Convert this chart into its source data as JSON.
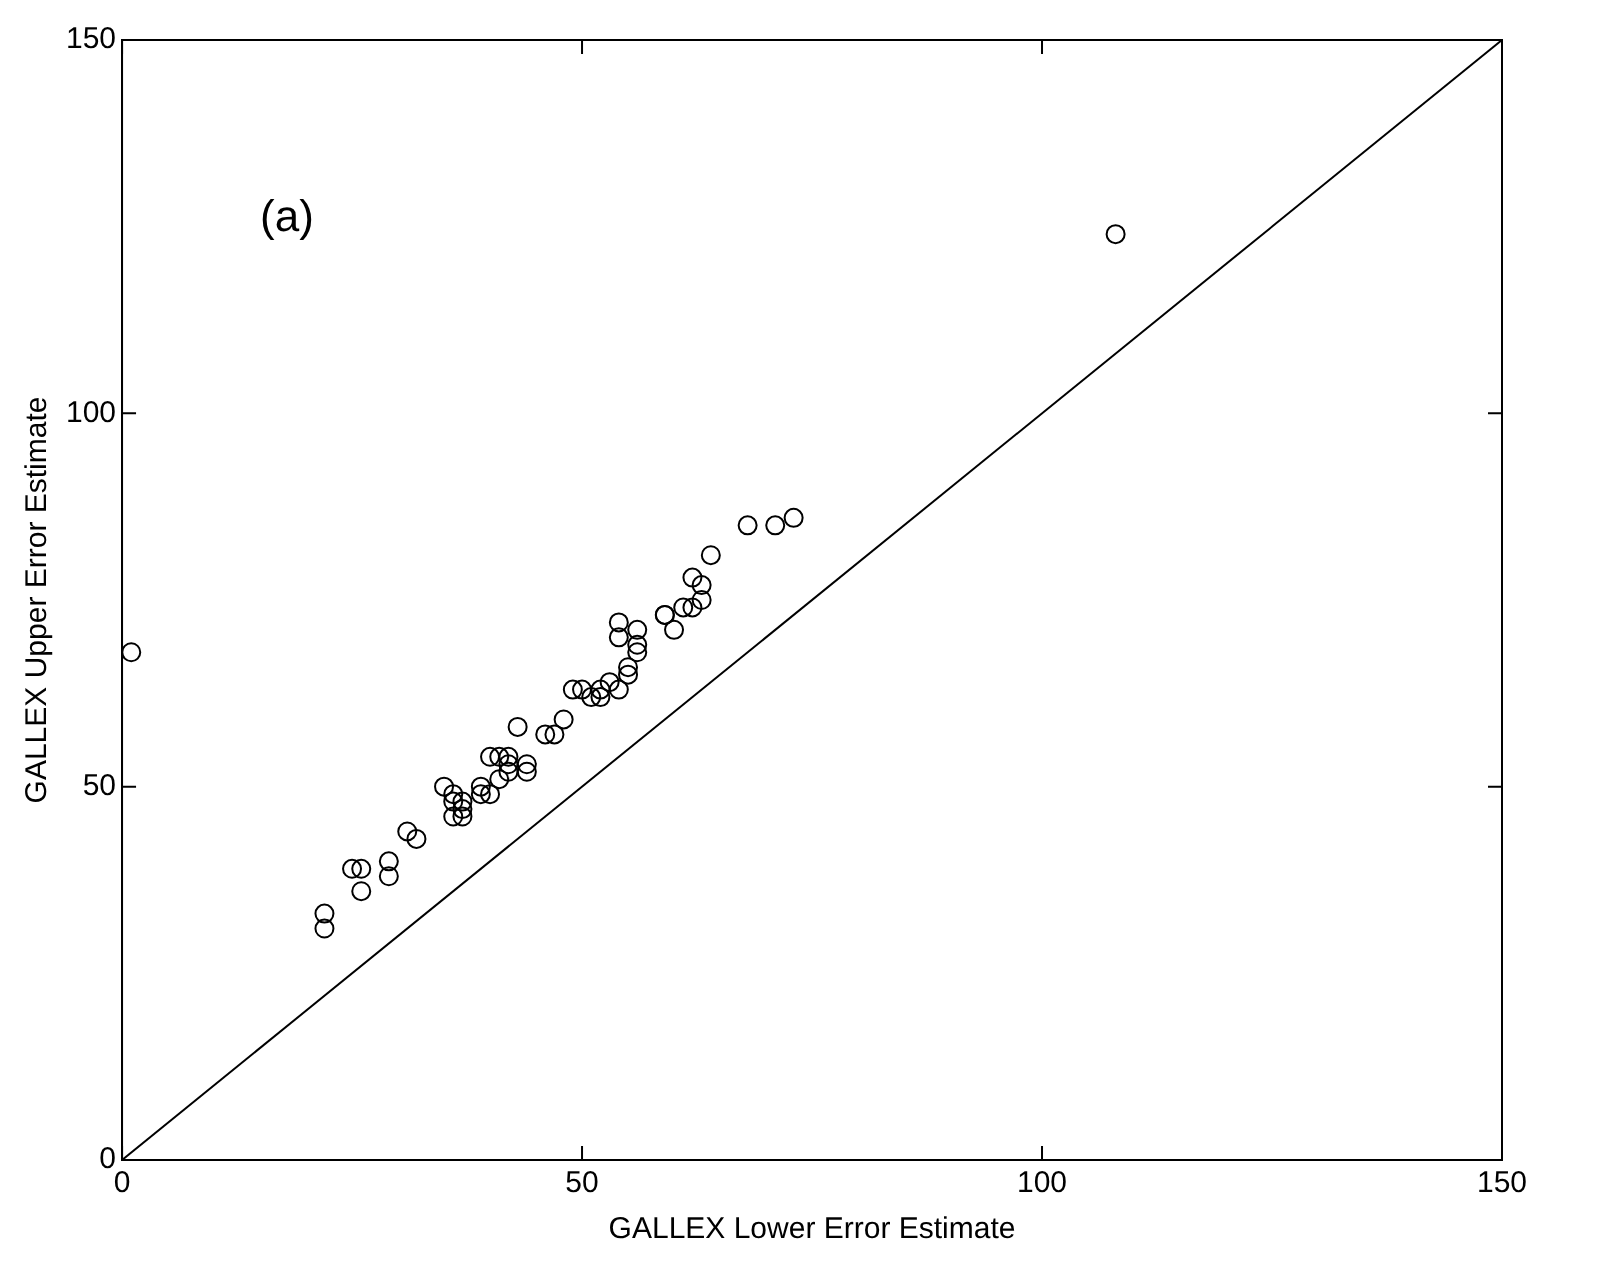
{
  "chart_data": {
    "type": "scatter",
    "xlabel": "GALLEX Lower Error Estimate",
    "ylabel": "GALLEX Upper Error Estimate",
    "annotations": [
      "(a)"
    ],
    "xlim": [
      0,
      150
    ],
    "ylim": [
      0,
      150
    ],
    "xticks": [
      0,
      50,
      100,
      150
    ],
    "yticks": [
      0,
      50,
      100,
      150
    ],
    "grid": false,
    "legend": false,
    "marker": "circle",
    "series": [
      {
        "type": "scatter",
        "color": "#000000",
        "x": [
          1,
          22,
          22,
          25,
          26,
          26,
          29,
          29,
          31,
          32,
          35,
          36,
          36,
          37,
          36,
          37,
          37,
          39,
          39,
          40,
          40,
          41,
          41,
          42,
          42,
          43,
          42,
          44,
          44,
          46,
          47,
          48,
          49,
          50,
          51,
          52,
          52,
          53,
          54,
          54,
          54,
          56,
          56,
          56,
          55,
          55,
          59,
          59,
          60,
          61,
          62,
          62,
          63,
          63,
          64,
          68,
          71,
          73,
          108
        ],
        "values": [
          68,
          33,
          31,
          39,
          39,
          36,
          40,
          38,
          44,
          43,
          50,
          49,
          48,
          48,
          46,
          46,
          47,
          50,
          49,
          49,
          54,
          54,
          51,
          52,
          53,
          58,
          54,
          53,
          52,
          57,
          57,
          59,
          63,
          63,
          62,
          62,
          63,
          64,
          63,
          72,
          70,
          71,
          69,
          68,
          66,
          65,
          73,
          73,
          71,
          74,
          74,
          78,
          77,
          75,
          81,
          85,
          85,
          86,
          124
        ]
      },
      {
        "type": "line",
        "color": "#000000",
        "marker": "none",
        "line_style": "solid",
        "x": [
          0,
          150
        ],
        "values": [
          0,
          150
        ]
      }
    ]
  }
}
